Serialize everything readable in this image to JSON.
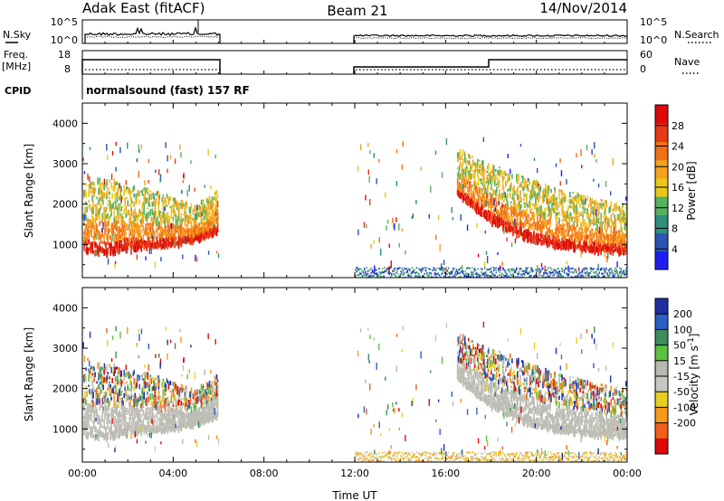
{
  "header": {
    "title": "Adak East (fitACF)",
    "beam": "Beam 21",
    "date": "14/Nov/2014"
  },
  "noise_panel": {
    "left_label": "N.Sky",
    "left_ticks": [
      "10^5",
      "10^0"
    ],
    "right_label": "N.Search",
    "right_ticks": [
      "10^5",
      "10^0"
    ]
  },
  "freq_panel": {
    "left_label_1": "Freq.",
    "left_label_2": "[MHz]",
    "left_ticks": [
      "18",
      "8"
    ],
    "right_label": "Nave",
    "right_ticks": [
      "60",
      "0"
    ],
    "cpid_label": "CPID"
  },
  "cpid_text": "normalsound (fast) 157 RF",
  "colors": {
    "power_scale": [
      "#1e1ef0",
      "#2a55b0",
      "#2e8f7c",
      "#56b060",
      "#e8c81a",
      "#f5a21e",
      "#f07018",
      "#e83a14",
      "#dc0a0a"
    ],
    "velocity_scale": [
      "#1f2fa0",
      "#2a60c8",
      "#3e8c5c",
      "#5ec040",
      "#b8b8b0",
      "#c8c8c0",
      "#e8d020",
      "#f59a1a",
      "#f0601a",
      "#dc0a0a"
    ],
    "ground_scatter": "#bdbdb5"
  },
  "chart_data": [
    {
      "type": "heatmap",
      "title": "",
      "xlabel": "",
      "ylabel": "Slant Range [km]",
      "xlim": [
        "00:00",
        "24:00"
      ],
      "ylim": [
        180,
        4500
      ],
      "y_ticks": [
        "1000",
        "2000",
        "3000",
        "4000"
      ],
      "colorbar": {
        "label": "Power [dB]",
        "range": [
          0,
          32
        ],
        "ticks": [
          "4",
          "8",
          "12",
          "16",
          "20",
          "24",
          "28"
        ]
      },
      "data_gaps": [
        [
          "06:00",
          "12:00"
        ]
      ],
      "series": [
        {
          "name": "",
          "time_hours": [
            0.0,
            1.0,
            2.0,
            3.0,
            4.0,
            5.0,
            6.0
          ],
          "lower_range_km": [
            900,
            820,
            950,
            1000,
            1050,
            1150,
            1400
          ],
          "upper_range_km": [
            2600,
            2700,
            2500,
            2400,
            2200,
            2000,
            2400
          ]
        },
        {
          "name": "",
          "time_hours": [
            16.5,
            18.0,
            19.5,
            21.0,
            22.5,
            24.0
          ],
          "lower_range_km": [
            2300,
            1600,
            1200,
            1000,
            900,
            850
          ],
          "upper_range_km": [
            3400,
            3000,
            2700,
            2400,
            2200,
            2000
          ]
        }
      ]
    },
    {
      "type": "heatmap",
      "title": "",
      "xlabel": "Time UT",
      "ylabel": "Slant Range [km]",
      "xlim": [
        "00:00",
        "24:00"
      ],
      "ylim": [
        180,
        4500
      ],
      "x_ticks": [
        "00:00",
        "04:00",
        "08:00",
        "12:00",
        "16:00",
        "20:00",
        "00:00"
      ],
      "y_ticks": [
        "1000",
        "2000",
        "3000",
        "4000"
      ],
      "colorbar": {
        "label": "Velocity [m s^-1]",
        "ticks": [
          "200",
          "100",
          "50",
          "15",
          "-15",
          "-50",
          "-100",
          "-200"
        ]
      },
      "data_gaps": [
        [
          "06:00",
          "12:00"
        ]
      ]
    }
  ]
}
